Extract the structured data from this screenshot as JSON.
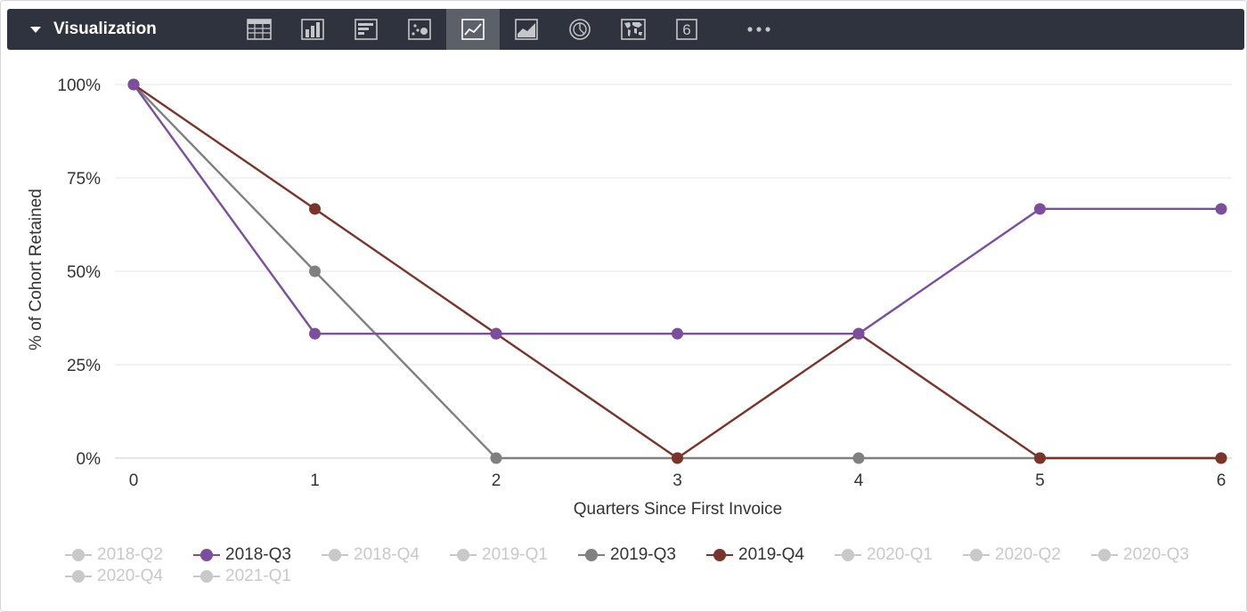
{
  "toolbar": {
    "title": "Visualization",
    "tools": [
      {
        "name": "table-icon",
        "active": false
      },
      {
        "name": "column-chart-icon",
        "active": false
      },
      {
        "name": "bar-chart-icon",
        "active": false
      },
      {
        "name": "scatter-chart-icon",
        "active": false
      },
      {
        "name": "line-chart-icon",
        "active": true
      },
      {
        "name": "area-chart-icon",
        "active": false
      },
      {
        "name": "pie-chart-icon",
        "active": false
      },
      {
        "name": "map-icon",
        "active": false
      },
      {
        "name": "single-value-icon",
        "active": false
      },
      {
        "name": "more-icon",
        "active": false
      }
    ],
    "single_value_glyph": "6",
    "more_glyph": "•••"
  },
  "colors": {
    "toolbar_bg": "#2f333d",
    "toolbar_active": "#5c6068",
    "grid": "#e6e6e6",
    "inactive_legend": "#c8c8c8",
    "active_legend_text": "#333333"
  },
  "chart_data": {
    "type": "line",
    "title": "",
    "xlabel": "Quarters Since First Invoice",
    "ylabel": "% of Cohort Retained",
    "x": [
      0,
      1,
      2,
      3,
      4,
      5,
      6
    ],
    "x_ticks": [
      "0",
      "1",
      "2",
      "3",
      "4",
      "5",
      "6"
    ],
    "ylim": [
      0,
      100
    ],
    "y_ticks": [
      "0%",
      "25%",
      "50%",
      "75%",
      "100%"
    ],
    "grid": true,
    "legend_position": "bottom",
    "series": [
      {
        "name": "2019-Q3",
        "color": "#808080",
        "values": [
          100,
          50,
          0,
          0,
          0,
          0,
          0
        ]
      },
      {
        "name": "2019-Q4",
        "color": "#7a3429",
        "values": [
          100,
          66.7,
          33.3,
          0,
          33.3,
          0,
          0
        ]
      },
      {
        "name": "2018-Q3",
        "color": "#7b4e9e",
        "values": [
          100,
          33.3,
          33.3,
          33.3,
          33.3,
          66.7,
          66.7
        ]
      }
    ],
    "legend": [
      {
        "name": "2018-Q2",
        "active": false
      },
      {
        "name": "2018-Q3",
        "active": true,
        "color": "#7b4e9e"
      },
      {
        "name": "2018-Q4",
        "active": false
      },
      {
        "name": "2019-Q1",
        "active": false
      },
      {
        "name": "2019-Q3",
        "active": true,
        "color": "#808080"
      },
      {
        "name": "2019-Q4",
        "active": true,
        "color": "#7a3429"
      },
      {
        "name": "2020-Q1",
        "active": false
      },
      {
        "name": "2020-Q2",
        "active": false
      },
      {
        "name": "2020-Q3",
        "active": false
      },
      {
        "name": "2020-Q4",
        "active": false
      },
      {
        "name": "2021-Q1",
        "active": false
      }
    ]
  }
}
